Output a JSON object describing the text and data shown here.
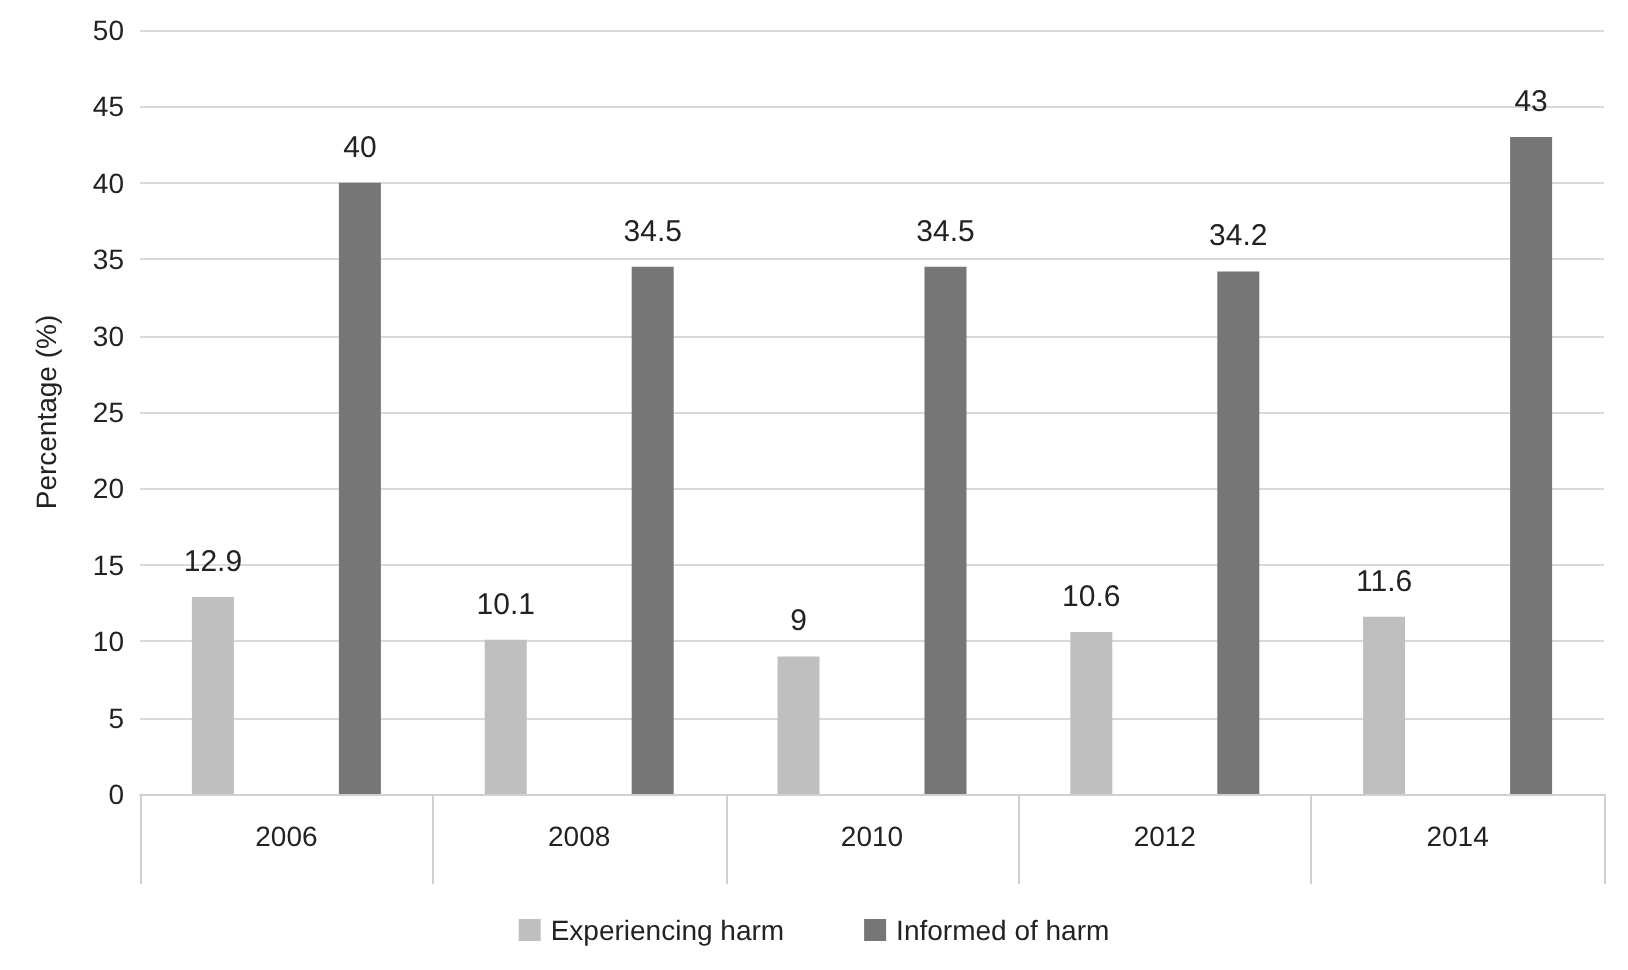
{
  "chart_data": {
    "type": "bar",
    "ylabel": "Percentage (%)",
    "categories": [
      "2006",
      "2008",
      "2010",
      "2012",
      "2014"
    ],
    "series": [
      {
        "name": "Experiencing harm",
        "color": "#bfbfbf",
        "values": [
          12.9,
          10.1,
          9,
          10.6,
          11.6
        ]
      },
      {
        "name": "Informed of harm",
        "color": "#767676",
        "values": [
          40,
          34.5,
          34.5,
          34.2,
          43
        ]
      }
    ],
    "ylim": [
      0,
      50
    ],
    "yticks": [
      0,
      5,
      10,
      15,
      20,
      25,
      30,
      35,
      40,
      45,
      50
    ],
    "grid": "y",
    "legend": "bottom",
    "data_labels": true
  }
}
